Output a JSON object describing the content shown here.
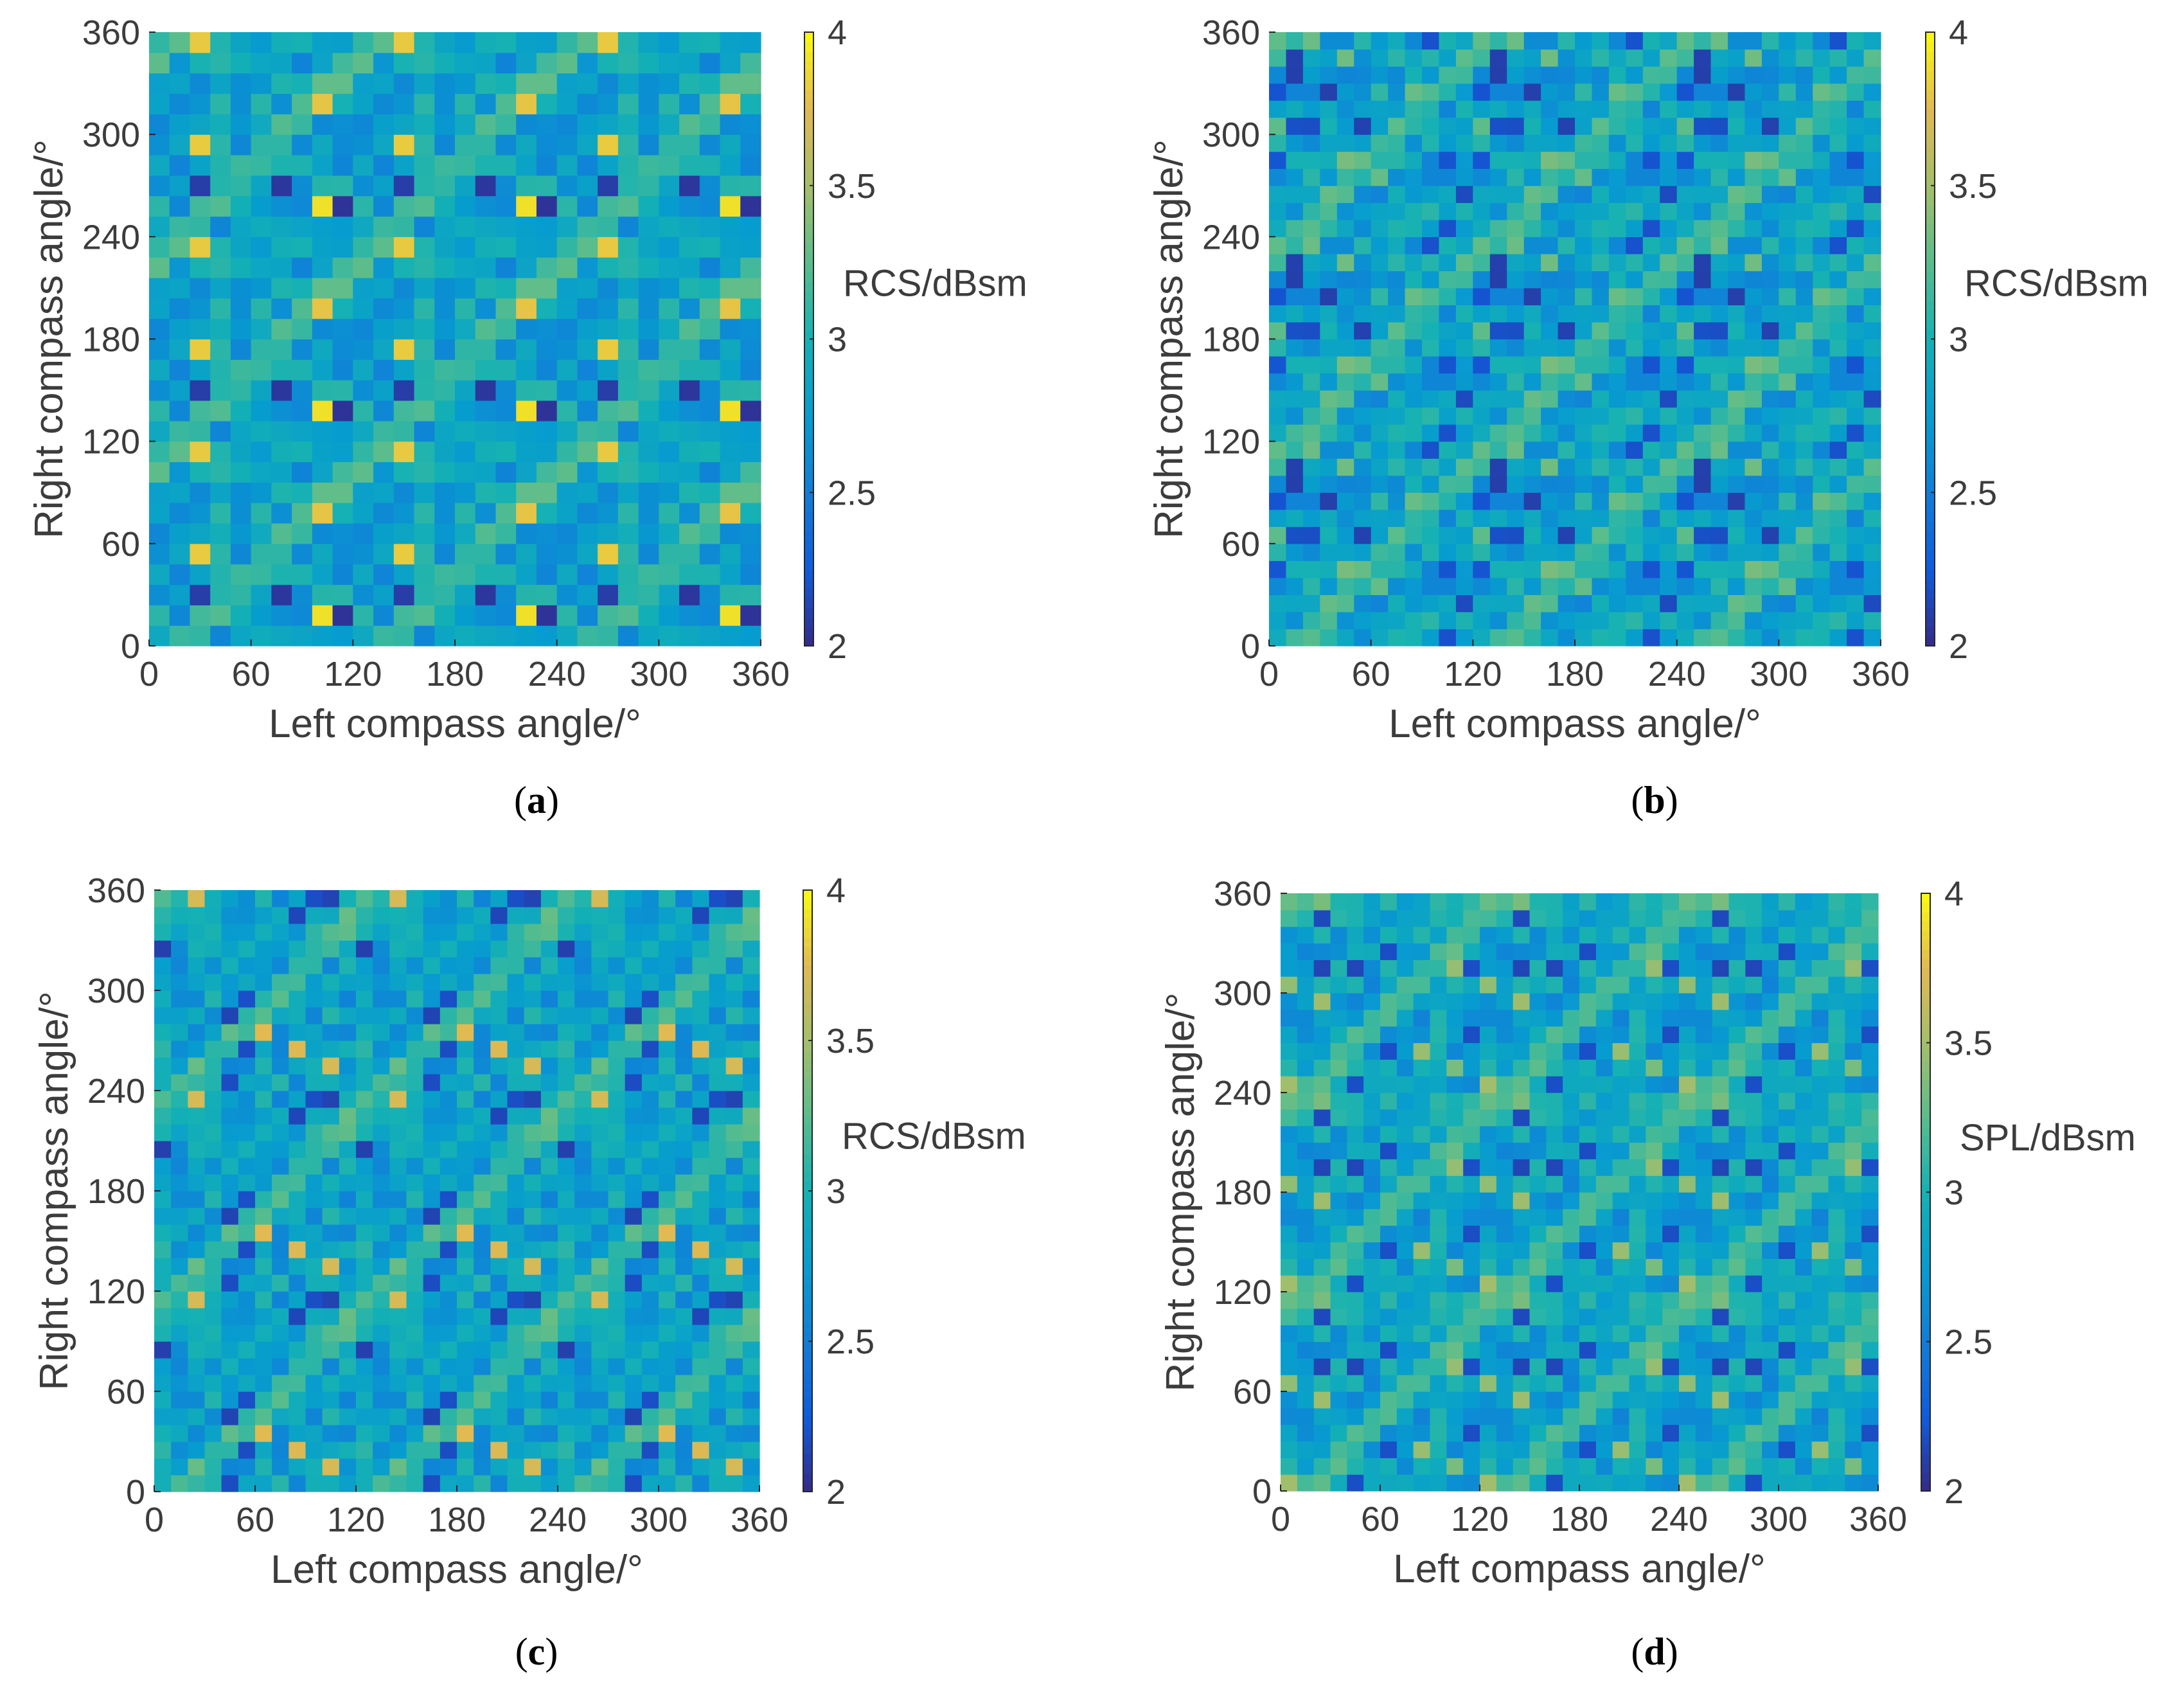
{
  "chart_data": [
    {
      "type": "heatmap",
      "caption": "(a)",
      "caption_letter": "a",
      "xlabel": "Left compass angle/°",
      "ylabel": "Right compass angle/°",
      "colorbar_label": "RCS/dBsm",
      "xlim": [
        0,
        360
      ],
      "ylim": [
        0,
        360
      ],
      "xticks": [
        "0",
        "60",
        "120",
        "180",
        "240",
        "300",
        "360"
      ],
      "yticks": [
        "0",
        "60",
        "120",
        "180",
        "240",
        "300",
        "360"
      ],
      "clim": [
        2,
        4
      ],
      "colorbar_ticks": [
        "2",
        "2.5",
        "3",
        "3.5",
        "4"
      ],
      "colormap": "parula",
      "grid_cells": [
        30,
        30
      ],
      "cell_step_deg": 12,
      "pattern_period_deg": [
        120,
        120
      ],
      "value_range": [
        2.0,
        3.9
      ],
      "grid": false
    },
    {
      "type": "heatmap",
      "caption": "(b)",
      "caption_letter": "b",
      "xlabel": "Left compass angle/°",
      "ylabel": "Right compass angle/°",
      "colorbar_label": "RCS/dBsm",
      "xlim": [
        0,
        360
      ],
      "ylim": [
        0,
        360
      ],
      "xticks": [
        "0",
        "60",
        "120",
        "180",
        "240",
        "300",
        "360"
      ],
      "yticks": [
        "0",
        "60",
        "120",
        "180",
        "240",
        "300",
        "360"
      ],
      "clim": [
        2,
        4
      ],
      "colorbar_ticks": [
        "2",
        "2.5",
        "3",
        "3.5",
        "4"
      ],
      "colormap": "parula",
      "grid_cells": [
        36,
        36
      ],
      "cell_step_deg": 10,
      "pattern_period_deg": [
        120,
        120
      ],
      "value_range": [
        2.1,
        3.4
      ],
      "grid": false
    },
    {
      "type": "heatmap",
      "caption": "(c)",
      "caption_letter": "c",
      "xlabel": "Left compass angle/°",
      "ylabel": "Right compass angle/°",
      "colorbar_label": "RCS/dBsm",
      "xlim": [
        0,
        360
      ],
      "ylim": [
        0,
        360
      ],
      "xticks": [
        "0",
        "60",
        "120",
        "180",
        "240",
        "300",
        "360"
      ],
      "yticks": [
        "0",
        "60",
        "120",
        "180",
        "240",
        "300",
        "360"
      ],
      "clim": [
        2,
        4
      ],
      "colorbar_ticks": [
        "2",
        "2.5",
        "3",
        "3.5",
        "4"
      ],
      "colormap": "parula",
      "grid_cells": [
        36,
        36
      ],
      "cell_step_deg": 10,
      "pattern_period_deg": [
        120,
        120
      ],
      "value_range": [
        2.1,
        3.8
      ],
      "grid": false
    },
    {
      "type": "heatmap",
      "caption": "(d)",
      "caption_letter": "d",
      "xlabel": "Left compass angle/°",
      "ylabel": "Right compass angle/°",
      "colorbar_label": "SPL/dBsm",
      "xlim": [
        0,
        360
      ],
      "ylim": [
        0,
        360
      ],
      "xticks": [
        "0",
        "60",
        "120",
        "180",
        "240",
        "300",
        "360"
      ],
      "yticks": [
        "0",
        "60",
        "120",
        "180",
        "240",
        "300",
        "360"
      ],
      "clim": [
        2,
        4
      ],
      "colorbar_ticks": [
        "2",
        "2.5",
        "3",
        "3.5",
        "4"
      ],
      "colormap": "parula",
      "grid_cells": [
        36,
        36
      ],
      "cell_step_deg": 10,
      "pattern_period_deg": [
        120,
        120
      ],
      "value_range": [
        2.1,
        3.5
      ],
      "grid": false
    }
  ]
}
